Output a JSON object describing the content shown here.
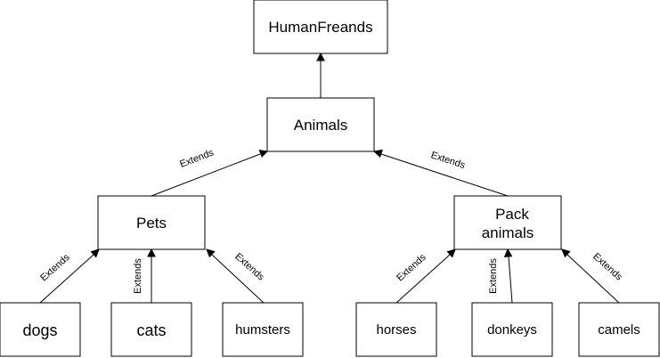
{
  "nodes": {
    "root": "HumanFreands",
    "animals": "Animals",
    "pets": "Pets",
    "pack": [
      "Pack",
      "animals"
    ],
    "dogs": "dogs",
    "cats": "cats",
    "humsters": "humsters",
    "horses": "horses",
    "donkeys": "donkeys",
    "camels": "camels"
  },
  "edge_label": "Extends",
  "colors": {
    "stroke": "#000000",
    "fill": "#ffffff",
    "text": "#000000"
  }
}
